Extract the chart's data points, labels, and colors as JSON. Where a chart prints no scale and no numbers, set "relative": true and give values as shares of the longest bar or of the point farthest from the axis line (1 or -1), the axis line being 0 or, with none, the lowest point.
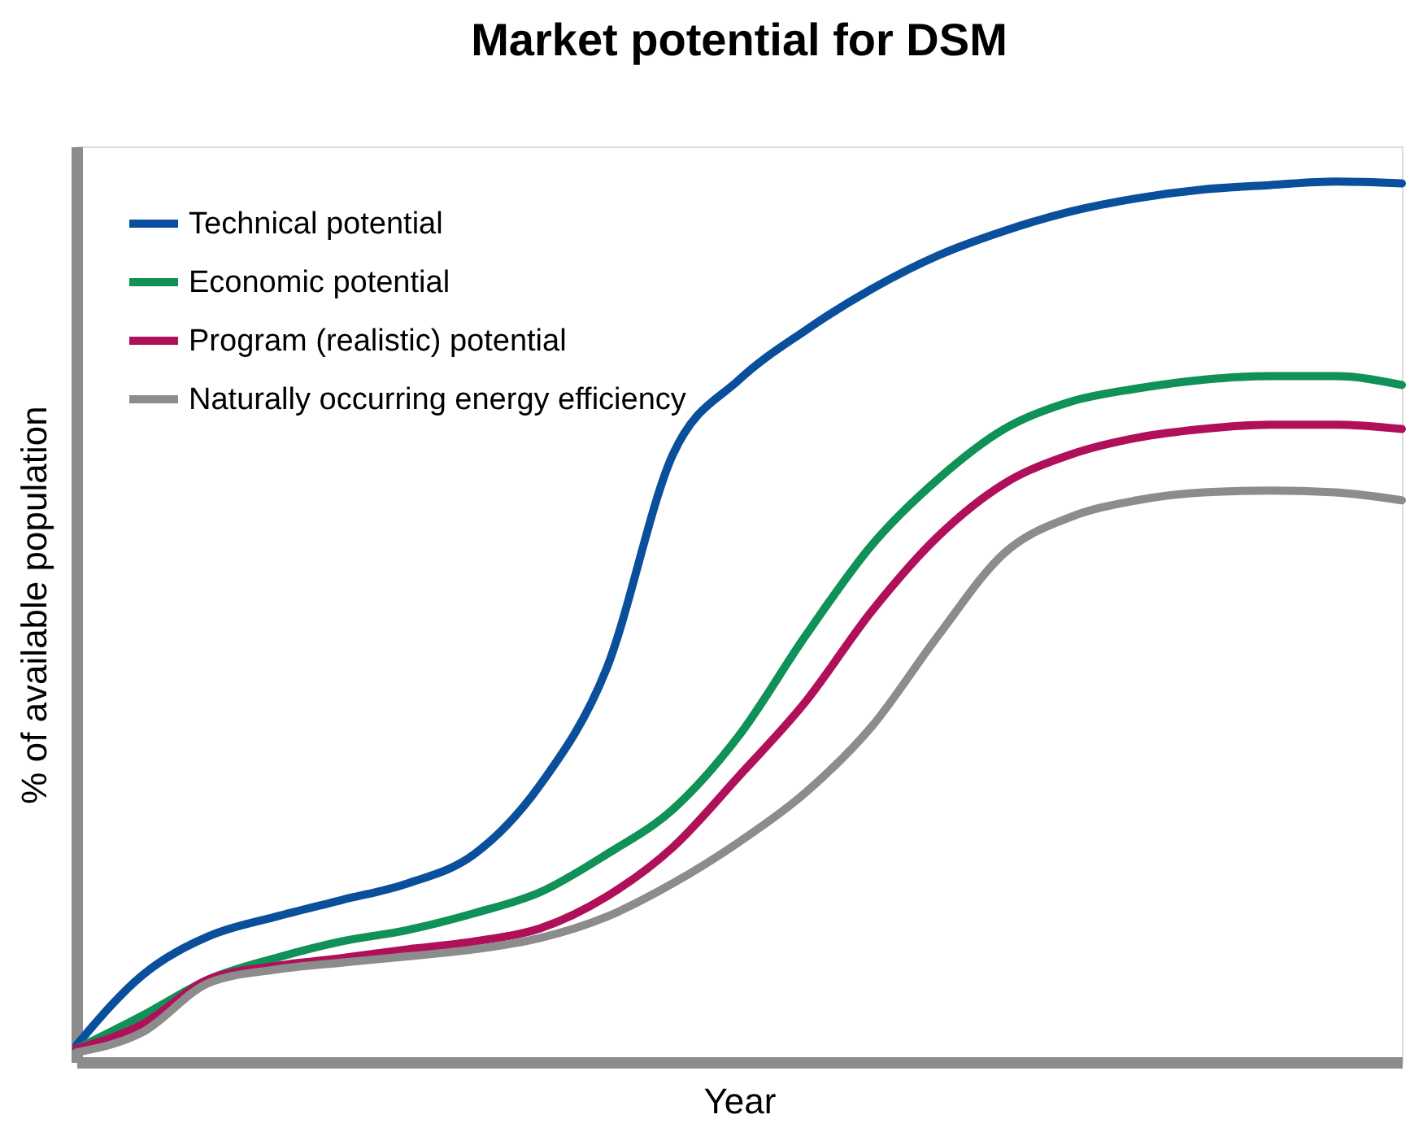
{
  "chart_data": {
    "type": "line",
    "title": "Market potential for DSM",
    "xlabel": "Year",
    "ylabel": "% of available population",
    "categories": [
      null,
      null,
      null,
      null,
      null,
      null,
      null,
      null,
      null,
      null,
      null,
      null,
      null,
      null,
      null,
      null,
      null,
      null,
      null,
      null,
      null
    ],
    "relative": true,
    "tick_labels": false,
    "grid": false,
    "legend": "top left",
    "marker": "none",
    "line_style": "solid",
    "series": [
      {
        "name": "Technical potential",
        "color": "#0a4f9c",
        "values": [
          0.019,
          0.099,
          0.143,
          0.165,
          0.184,
          0.203,
          0.236,
          0.315,
          0.447,
          0.69,
          0.775,
          0.831,
          0.878,
          0.916,
          0.944,
          0.966,
          0.981,
          0.991,
          0.996,
          1.0,
          0.998
        ]
      },
      {
        "name": "Economic potential",
        "color": "#0f9158",
        "values": [
          0.015,
          0.053,
          0.094,
          0.118,
          0.137,
          0.15,
          0.169,
          0.193,
          0.236,
          0.287,
          0.371,
          0.484,
          0.587,
          0.662,
          0.719,
          0.75,
          0.765,
          0.775,
          0.779,
          0.779,
          0.769
        ]
      },
      {
        "name": "Program (realistic) potential",
        "color": "#b0105a",
        "values": [
          0.015,
          0.043,
          0.094,
          0.109,
          0.118,
          0.128,
          0.137,
          0.152,
          0.188,
          0.244,
          0.325,
          0.409,
          0.512,
          0.597,
          0.657,
          0.69,
          0.709,
          0.719,
          0.724,
          0.724,
          0.719
        ]
      },
      {
        "name": "Naturally occurring energy efficiency",
        "color": "#8c8c8c",
        "values": [
          0.011,
          0.034,
          0.09,
          0.105,
          0.113,
          0.12,
          0.128,
          0.141,
          0.165,
          0.203,
          0.25,
          0.306,
          0.381,
          0.484,
          0.578,
          0.619,
          0.638,
          0.647,
          0.649,
          0.647,
          0.638
        ]
      }
    ]
  }
}
